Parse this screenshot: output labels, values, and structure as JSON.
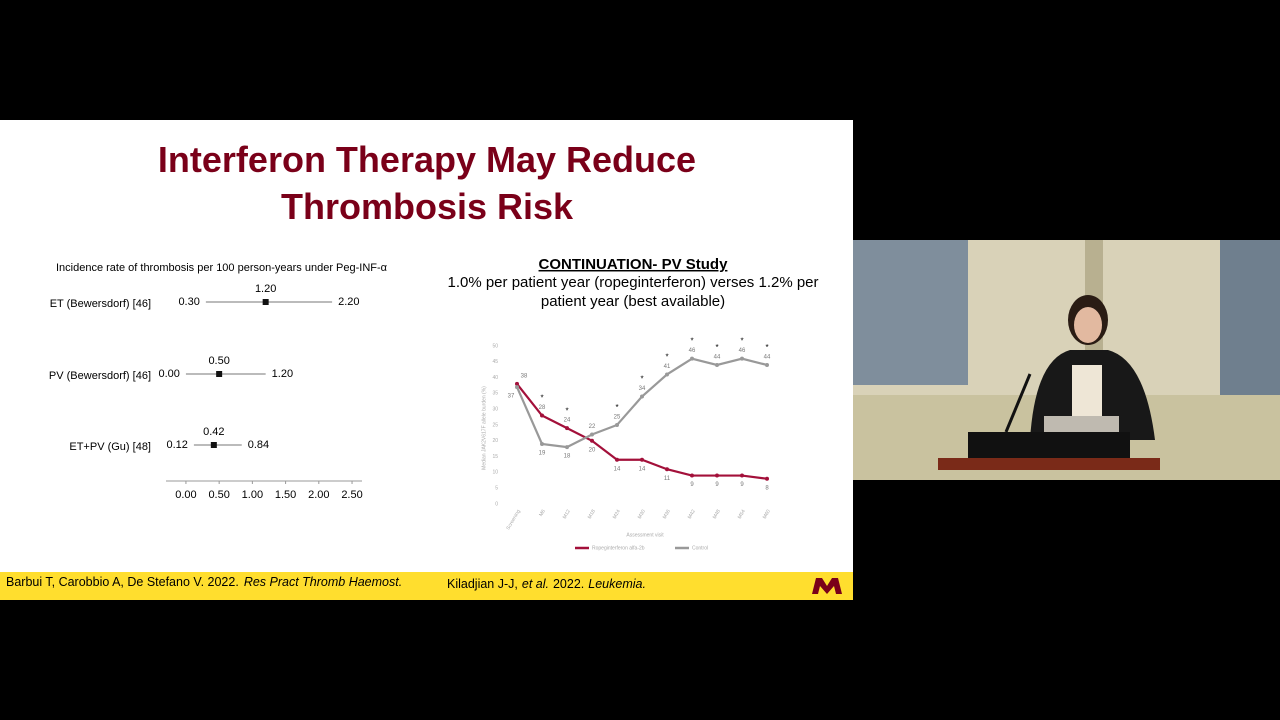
{
  "slide": {
    "title": "Interferon Therapy May Reduce Thrombosis Risk"
  },
  "chart_data": [
    {
      "type": "forest",
      "title": "Incidence rate of thrombosis per 100 person-years under Peg-INF-α",
      "categories": [
        "ET (Bewersdorf) [46]",
        "PV (Bewersdorf) [46]",
        "ET+PV (Gu) [48]"
      ],
      "values": [
        1.2,
        0.5,
        0.42
      ],
      "value_labels": [
        "1.20",
        "0.50",
        "0.42"
      ],
      "lower": [
        0.3,
        0,
        0.12
      ],
      "lower_labels": [
        "0.30",
        "0.00",
        "0.12"
      ],
      "upper": [
        2.2,
        1.2,
        0.84
      ],
      "upper_labels": [
        "2.20",
        "1.20",
        "0.84"
      ],
      "color": "#111111",
      "xlim": [
        -0.3,
        2.65
      ],
      "xticks": [
        {
          "value": 0,
          "label": "0.00"
        },
        {
          "value": 0.5,
          "label": "0.50"
        },
        {
          "value": 1,
          "label": "1.00"
        },
        {
          "value": 1.5,
          "label": "1.50"
        },
        {
          "value": 2,
          "label": "2.00"
        },
        {
          "value": 2.5,
          "label": "2.50"
        }
      ]
    },
    {
      "type": "line",
      "title": "CONTINUATION- PV Study",
      "subtitle": "1.0% per patient year (ropeginterferon) verses 1.2% per patient year (best available)",
      "x_label": "Assessment visit",
      "y_label": "Median JAK2V617F allele burden (%)",
      "categories": [
        "Screening",
        "M6",
        "M12",
        "M18",
        "M24",
        "M30",
        "M36",
        "M42",
        "M48",
        "M54",
        "M60"
      ],
      "series": [
        {
          "name": "Ropeginterferon alfa-2b",
          "color": "#a3103a",
          "values": [
            38,
            28,
            24,
            20,
            14,
            14,
            11,
            9,
            9,
            9,
            8
          ]
        },
        {
          "name": "Control",
          "color": "#999999",
          "values": [
            37,
            19,
            18,
            22,
            25,
            34,
            41,
            46,
            44,
            46,
            44
          ]
        }
      ],
      "significance_labels": [
        null,
        "*",
        "*",
        null,
        "*",
        "*",
        "*",
        "*",
        "*",
        "*",
        "*"
      ],
      "ylim": [
        0,
        50
      ],
      "yticks": [
        0,
        5,
        10,
        15,
        20,
        25,
        30,
        35,
        40,
        45,
        50
      ]
    }
  ],
  "footer": {
    "left_authors": "Barbui T, Carobbio A, De Stefano V. 2022.",
    "left_journal": "Res Pract Thromb Haemost.",
    "right_authors": "Kiladjian J-J,",
    "right_etal": "et al.",
    "right_year": "2022.",
    "right_journal": "Leukemia."
  }
}
